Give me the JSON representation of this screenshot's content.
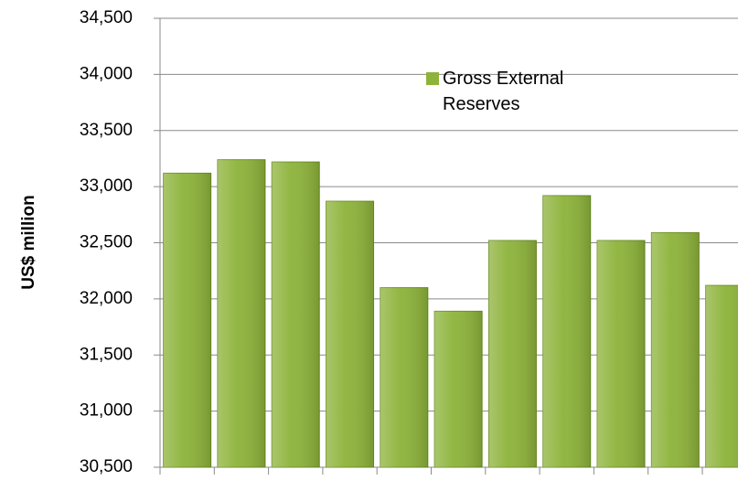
{
  "chart_data": {
    "type": "bar",
    "y_label": "US$ million",
    "categories": [
      null,
      null,
      null,
      null,
      null,
      null,
      null,
      null,
      null,
      null,
      null
    ],
    "series": [
      {
        "name": "Gross External Reserves",
        "color": "#8db33a",
        "values": [
          33120,
          33240,
          33220,
          32870,
          32100,
          31890,
          32520,
          32920,
          32520,
          32590,
          32120
        ]
      }
    ],
    "ylim": [
      30500,
      34500
    ],
    "yticks": [
      {
        "value": 30500,
        "label": "30,500"
      },
      {
        "value": 31000,
        "label": "31,000"
      },
      {
        "value": 31500,
        "label": "31,500"
      },
      {
        "value": 32000,
        "label": "32,000"
      },
      {
        "value": 32500,
        "label": "32,500"
      },
      {
        "value": 33000,
        "label": "33,000"
      },
      {
        "value": 33500,
        "label": "33,500"
      },
      {
        "value": 34000,
        "label": "34,000"
      },
      {
        "value": 34500,
        "label": "34,500"
      }
    ],
    "grid": true
  }
}
